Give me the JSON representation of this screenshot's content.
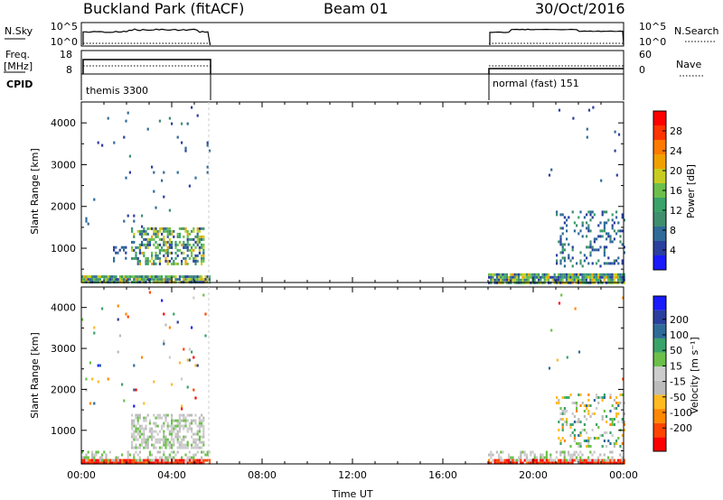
{
  "header": {
    "title": "Buckland Park (fitACF)",
    "beam": "Beam 01",
    "date": "30/Oct/2016"
  },
  "strips": {
    "nsky_label": "N.Sky",
    "nsearch_label": "N.Search",
    "noise_ticks": [
      "10^5",
      "10^0"
    ],
    "freq_label_1": "Freq.",
    "freq_label_2": "[MHz]",
    "freq_ticks": [
      "18",
      "8"
    ],
    "nave_label": "Nave",
    "nave_ticks": [
      "60",
      "0"
    ],
    "cpid_label": "CPID",
    "cpid_segments": [
      {
        "label": "themis 3300",
        "start_hour": 0,
        "end_hour": 5.7
      },
      {
        "label": "normal (fast) 151",
        "start_hour": 18,
        "end_hour": 24
      }
    ]
  },
  "colors": {
    "power_bins": [
      "#1a1aff",
      "#2b3f9e",
      "#2f6b99",
      "#3f8f6f",
      "#3aa36a",
      "#6cc04a",
      "#c8cc20",
      "#f0a000",
      "#ff7a00",
      "#ff3300",
      "#ff0000"
    ],
    "velocity_bins": [
      "#ff0000",
      "#ff4400",
      "#ff8800",
      "#ffbb22",
      "#bbbbbb",
      "#cccccc",
      "#6cc04a",
      "#3aa36a",
      "#2f6b99",
      "#2b3f9e",
      "#1a1aff"
    ]
  },
  "chart_data": [
    {
      "type": "heatmap",
      "name": "power",
      "ylabel": "Slant Range [km]",
      "xlim": [
        0,
        24
      ],
      "ylim": [
        180,
        4500
      ],
      "yticks": [
        "1000",
        "2000",
        "3000",
        "4000"
      ],
      "colorbar": {
        "label": "Power [dB]",
        "ticks": [
          "4",
          "8",
          "12",
          "16",
          "20",
          "24",
          "28"
        ],
        "range": [
          0,
          32
        ]
      },
      "scatter_regions": [
        {
          "x": [
            0,
            5.7
          ],
          "y": [
            180,
            350
          ],
          "density": 0.95,
          "value_range": [
            3,
            22
          ]
        },
        {
          "x": [
            1.4,
            2.0
          ],
          "y": [
            700,
            1050
          ],
          "density": 0.35,
          "value_range": [
            3,
            9
          ]
        },
        {
          "x": [
            2.2,
            5.4
          ],
          "y": [
            600,
            1500
          ],
          "density": 0.5,
          "value_range": [
            3,
            22
          ]
        },
        {
          "x": [
            0,
            5.7
          ],
          "y": [
            1500,
            4400
          ],
          "density": 0.015,
          "value_range": [
            3,
            10
          ]
        },
        {
          "x": [
            18,
            24
          ],
          "y": [
            180,
            400
          ],
          "density": 0.9,
          "value_range": [
            3,
            22
          ]
        },
        {
          "x": [
            21.0,
            24
          ],
          "y": [
            600,
            1900
          ],
          "density": 0.2,
          "value_range": [
            3,
            12
          ]
        },
        {
          "x": [
            20.5,
            24
          ],
          "y": [
            1900,
            4400
          ],
          "density": 0.01,
          "value_range": [
            3,
            8
          ]
        }
      ]
    },
    {
      "type": "heatmap",
      "name": "velocity",
      "xlabel": "Time UT",
      "ylabel": "Slant Range [km]",
      "xlim": [
        0,
        24
      ],
      "ylim": [
        180,
        4500
      ],
      "xticks": [
        "00:00",
        "04:00",
        "08:00",
        "12:00",
        "16:00",
        "20:00",
        "00:00"
      ],
      "yticks": [
        "1000",
        "2000",
        "3000",
        "4000"
      ],
      "colorbar": {
        "label": "Velocity [m s⁻¹]",
        "ticks": [
          "-200",
          "-100",
          "-50",
          "-15",
          "15",
          "50",
          "100",
          "200"
        ],
        "range": [
          -250,
          250
        ]
      },
      "scatter_regions": [
        {
          "x": [
            0,
            5.7
          ],
          "y": [
            180,
            300
          ],
          "density": 0.95,
          "value_range": [
            -250,
            -150
          ]
        },
        {
          "x": [
            0,
            5.7
          ],
          "y": [
            300,
            500
          ],
          "density": 0.4,
          "value_range": [
            -60,
            60
          ]
        },
        {
          "x": [
            2.2,
            5.4
          ],
          "y": [
            600,
            1400
          ],
          "density": 0.55,
          "value_range": [
            -40,
            40
          ]
        },
        {
          "x": [
            0,
            5.7
          ],
          "y": [
            1500,
            4400
          ],
          "density": 0.015,
          "value_range": [
            -250,
            250
          ]
        },
        {
          "x": [
            18,
            24
          ],
          "y": [
            180,
            300
          ],
          "density": 0.9,
          "value_range": [
            -250,
            -150
          ]
        },
        {
          "x": [
            18,
            24
          ],
          "y": [
            300,
            500
          ],
          "density": 0.4,
          "value_range": [
            -60,
            60
          ]
        },
        {
          "x": [
            21.0,
            24
          ],
          "y": [
            600,
            1900
          ],
          "density": 0.25,
          "value_range": [
            -120,
            120
          ]
        },
        {
          "x": [
            20.5,
            24
          ],
          "y": [
            1900,
            4400
          ],
          "density": 0.01,
          "value_range": [
            -250,
            250
          ]
        }
      ]
    }
  ]
}
